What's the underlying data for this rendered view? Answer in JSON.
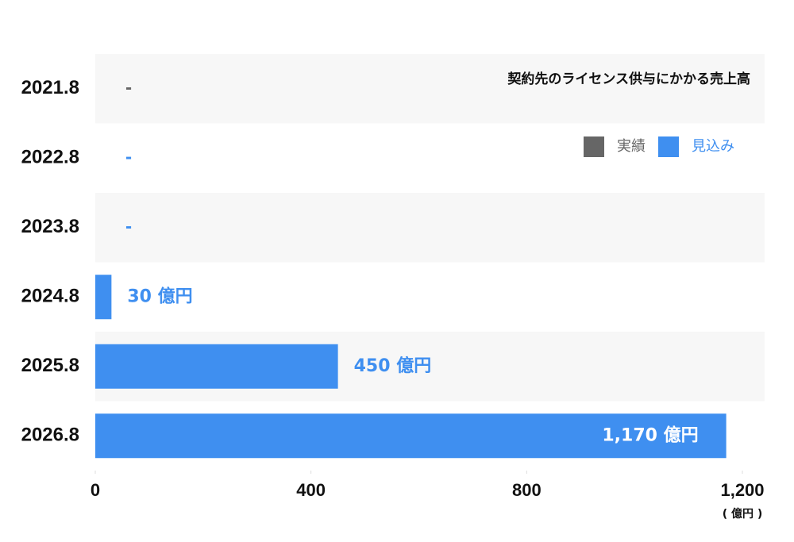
{
  "chart_data": {
    "type": "bar",
    "orientation": "horizontal",
    "title": "契約先のライセンス供与にかかる売上高",
    "categories": [
      "2021.8",
      "2022.8",
      "2023.8",
      "2024.8",
      "2025.8",
      "2026.8"
    ],
    "series": [
      {
        "name": "実績",
        "color": "#666666",
        "values": [
          null,
          null,
          null,
          null,
          null,
          null
        ],
        "value_labels": [
          "-",
          null,
          null,
          null,
          null,
          null
        ]
      },
      {
        "name": "見込み",
        "color": "#3f8ff0",
        "values": [
          null,
          null,
          null,
          30,
          450,
          1170
        ],
        "value_labels": [
          null,
          "-",
          "-",
          "30 億円",
          "450 億円",
          "1,170 億円"
        ]
      }
    ],
    "xlim": [
      0,
      1200
    ],
    "xticks": [
      0,
      400,
      800,
      {
        "value": 1200,
        "label": "1,200"
      }
    ],
    "x_unit": "( 億円 )",
    "legend": "top-right"
  }
}
